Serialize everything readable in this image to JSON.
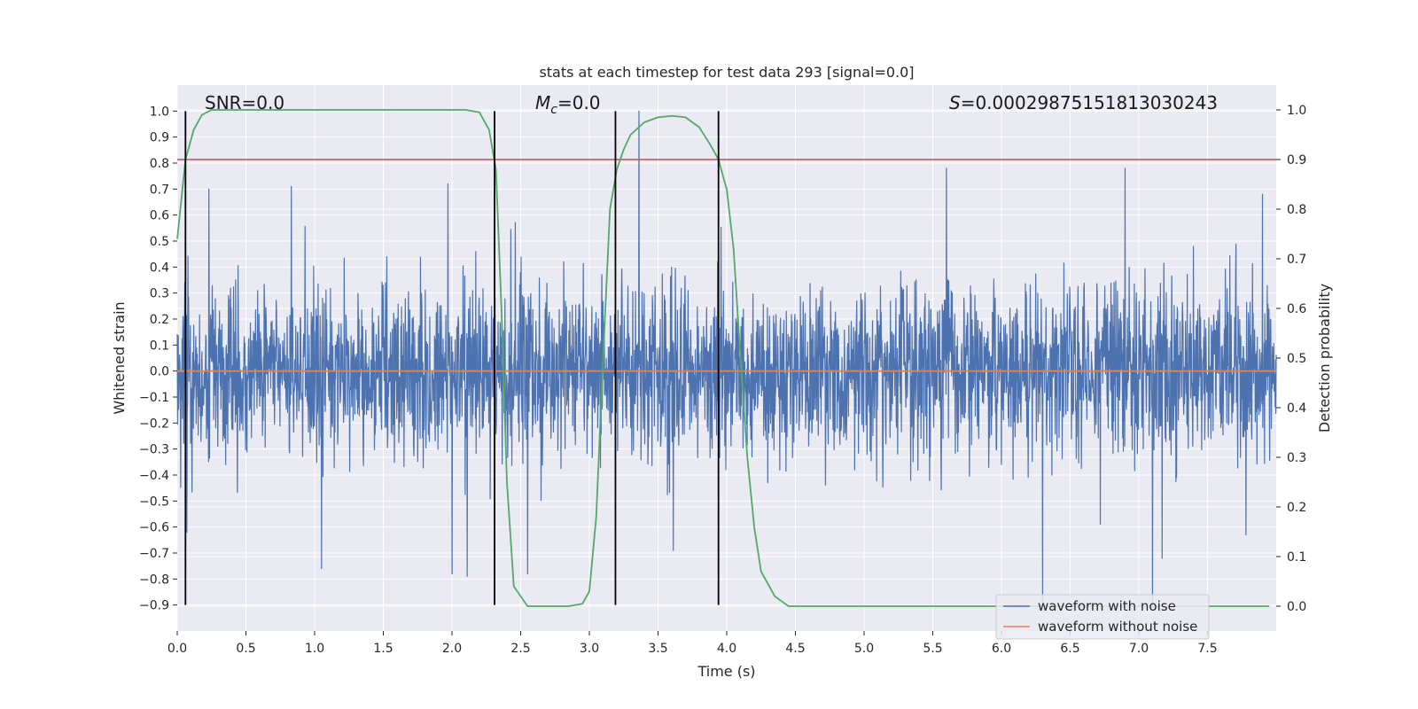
{
  "chart_data": {
    "type": "line",
    "title": "stats at each timestep for test data 293 [signal=0.0]",
    "xlabel": "Time (s)",
    "ylabel": "Whitened strain",
    "ylabel_right": "Detection probability",
    "xlim": [
      0,
      8
    ],
    "ylim": [
      -1.0,
      1.1
    ],
    "ylim_right": [
      -0.05,
      1.05
    ],
    "xticks": [
      "0.0",
      "0.5",
      "1.0",
      "1.5",
      "2.0",
      "2.5",
      "3.0",
      "3.5",
      "4.0",
      "4.5",
      "5.0",
      "5.5",
      "6.0",
      "6.5",
      "7.0",
      "7.5"
    ],
    "yticks": [
      "1.0",
      "0.9",
      "0.8",
      "0.7",
      "0.6",
      "0.5",
      "0.4",
      "0.3",
      "0.2",
      "0.1",
      "0.0",
      "−0.1",
      "−0.2",
      "−0.3",
      "−0.4",
      "−0.5",
      "−0.6",
      "−0.7",
      "−0.8",
      "−0.9"
    ],
    "yticks_right": [
      "1.0",
      "0.9",
      "0.8",
      "0.7",
      "0.6",
      "0.5",
      "0.4",
      "0.3",
      "0.2",
      "0.1",
      "0.0"
    ],
    "annotations": {
      "snr": "SNR=0.0",
      "mc_symbol": "M",
      "mc_sub": "c",
      "mc_value": "=0.0",
      "s_symbol": "S",
      "s_value": "=0.00029875151813030243"
    },
    "legend": {
      "placement": "lower-right",
      "entries": [
        "waveform with noise",
        "waveform without noise"
      ]
    },
    "colors": {
      "noise": "#4c72b0",
      "clean": "#dd8452",
      "probability": "#55a868",
      "threshold": "#c44e52",
      "segments": "#000000",
      "background": "#eaeaf2"
    },
    "threshold": 0.9,
    "segment_times": [
      0.06,
      2.31,
      3.19,
      3.94
    ],
    "series": [
      {
        "name": "waveform with noise",
        "noise_sigma": 0.16,
        "sample_count": 3200,
        "spikes": [
          [
            0.23,
            0.7
          ],
          [
            0.83,
            0.71
          ],
          [
            1.97,
            0.72
          ],
          [
            3.36,
            1.0
          ],
          [
            5.6,
            0.78
          ],
          [
            6.9,
            0.78
          ],
          [
            7.9,
            0.68
          ],
          [
            0.07,
            -0.62
          ],
          [
            1.05,
            -0.76
          ],
          [
            2.0,
            -0.78
          ],
          [
            2.11,
            -0.79
          ],
          [
            2.55,
            -0.78
          ],
          [
            3.61,
            -0.69
          ],
          [
            6.3,
            -0.89
          ],
          [
            7.1,
            -0.89
          ],
          [
            7.17,
            -0.72
          ],
          [
            7.78,
            -0.63
          ]
        ]
      },
      {
        "name": "waveform without noise",
        "x": [
          0,
          8
        ],
        "values": [
          0.0,
          0.0
        ]
      },
      {
        "x": [
          0.0,
          0.06,
          0.12,
          0.18,
          0.25,
          0.3,
          0.4,
          0.6,
          1.0,
          1.5,
          2.0,
          2.1,
          2.2,
          2.27,
          2.32,
          2.36,
          2.4,
          2.45,
          2.55,
          2.7,
          2.85,
          2.95,
          3.0,
          3.05,
          3.1,
          3.15,
          3.2,
          3.25,
          3.3,
          3.4,
          3.5,
          3.6,
          3.7,
          3.8,
          3.88,
          3.94,
          4.0,
          4.05,
          4.1,
          4.15,
          4.2,
          4.25,
          4.35,
          4.45,
          5.0,
          6.0,
          7.0,
          7.95
        ],
        "values": [
          0.74,
          0.9,
          0.96,
          0.99,
          1.0,
          1.0,
          1.0,
          1.0,
          1.0,
          1.0,
          1.0,
          1.0,
          0.995,
          0.96,
          0.88,
          0.6,
          0.25,
          0.04,
          0.0,
          0.0,
          0.0,
          0.005,
          0.03,
          0.18,
          0.5,
          0.8,
          0.88,
          0.92,
          0.95,
          0.975,
          0.985,
          0.988,
          0.985,
          0.965,
          0.93,
          0.9,
          0.84,
          0.72,
          0.5,
          0.3,
          0.16,
          0.07,
          0.02,
          0.0,
          0.0,
          0.0,
          0.0,
          0.0
        ]
      }
    ]
  }
}
